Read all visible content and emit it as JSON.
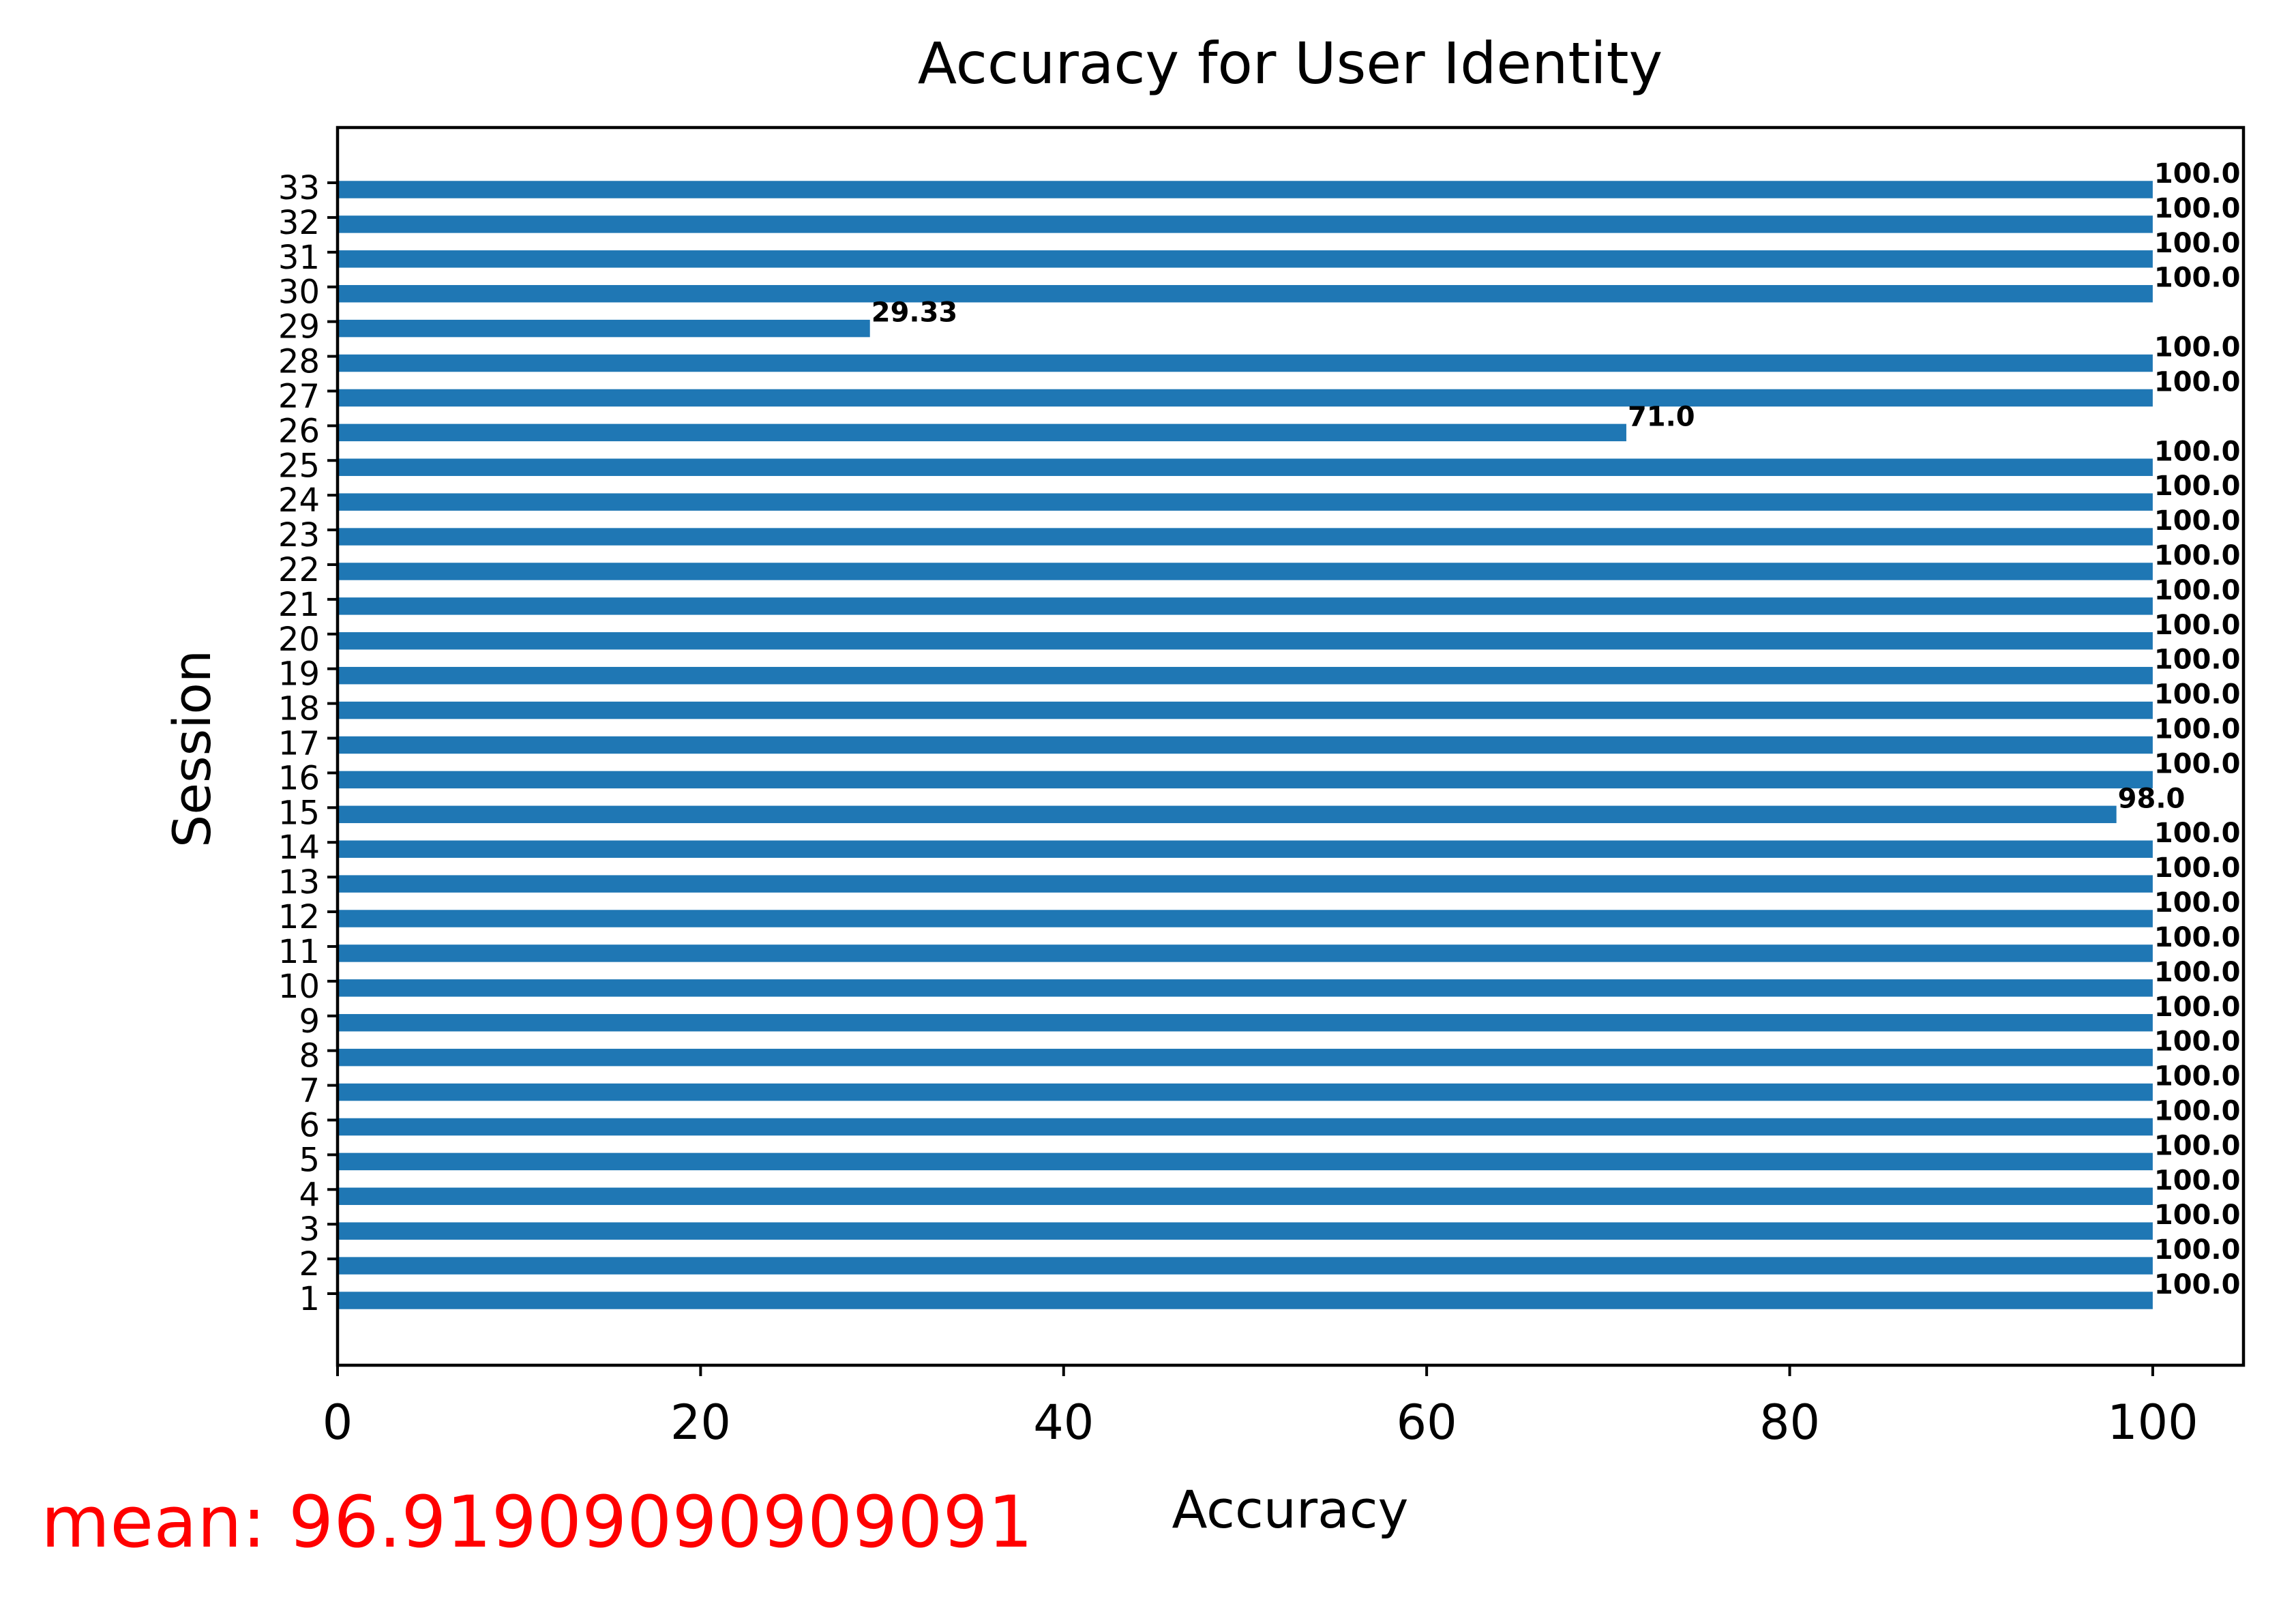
{
  "chart_data": {
    "type": "bar",
    "orientation": "horizontal",
    "title": "Accuracy for User Identity",
    "xlabel": "Accuracy",
    "ylabel": "Session",
    "xlim": [
      0,
      105
    ],
    "xticks": [
      "0",
      "20",
      "40",
      "60",
      "80",
      "100"
    ],
    "grid": false,
    "bar_color": "#1f77b4",
    "categories": [
      "1",
      "2",
      "3",
      "4",
      "5",
      "6",
      "7",
      "8",
      "9",
      "10",
      "11",
      "12",
      "13",
      "14",
      "15",
      "16",
      "17",
      "18",
      "19",
      "20",
      "21",
      "22",
      "23",
      "24",
      "25",
      "26",
      "27",
      "28",
      "29",
      "30",
      "31",
      "32",
      "33"
    ],
    "values": [
      100,
      100,
      100,
      100,
      100,
      100,
      100,
      100,
      100,
      100,
      100,
      100,
      100,
      100,
      98,
      100,
      100,
      100,
      100,
      100,
      100,
      100,
      100,
      100,
      100,
      71,
      100,
      100,
      29.33,
      100,
      100,
      100,
      100
    ],
    "value_labels": [
      "100.0",
      "100.0",
      "100.0",
      "100.0",
      "100.0",
      "100.0",
      "100.0",
      "100.0",
      "100.0",
      "100.0",
      "100.0",
      "100.0",
      "100.0",
      "100.0",
      "98.0",
      "100.0",
      "100.0",
      "100.0",
      "100.0",
      "100.0",
      "100.0",
      "100.0",
      "100.0",
      "100.0",
      "100.0",
      "71.0",
      "100.0",
      "100.0",
      "29.33",
      "100.0",
      "100.0",
      "100.0",
      "100.0"
    ],
    "annotation": {
      "text": "mean: 96.91909090909091",
      "color": "#ff0000"
    }
  }
}
